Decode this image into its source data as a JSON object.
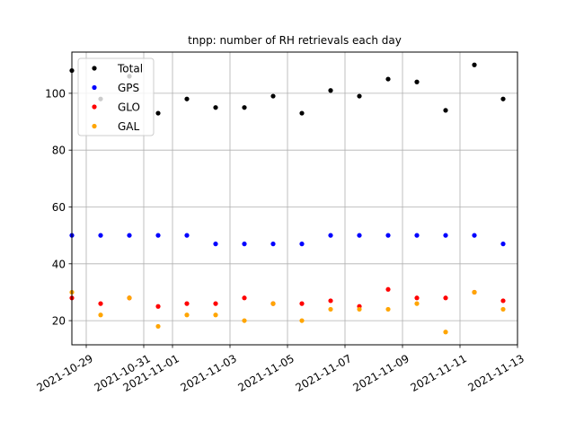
{
  "chart_data": {
    "type": "scatter",
    "title": "tnpp: number of RH retrievals each day",
    "xlabel": "",
    "ylabel": "",
    "x_type": "date",
    "xlim": [
      "2021-10-28T12:00",
      "2021-11-13T00:00"
    ],
    "ylim": [
      11.5,
      114.5
    ],
    "grid": true,
    "legend_position": "top-left",
    "x_ticks": [
      "2021-10-29",
      "2021-10-31",
      "2021-11-01",
      "2021-11-03",
      "2021-11-05",
      "2021-11-07",
      "2021-11-09",
      "2021-11-11",
      "2021-11-13"
    ],
    "y_ticks": [
      20,
      40,
      60,
      80,
      100
    ],
    "x": [
      "2021-10-28T12:00",
      "2021-10-29T12:00",
      "2021-10-30T12:00",
      "2021-10-31T12:00",
      "2021-11-01T12:00",
      "2021-11-02T12:00",
      "2021-11-03T12:00",
      "2021-11-04T12:00",
      "2021-11-05T12:00",
      "2021-11-06T12:00",
      "2021-11-07T12:00",
      "2021-11-08T12:00",
      "2021-11-09T12:00",
      "2021-11-10T12:00",
      "2021-11-11T12:00",
      "2021-11-12T12:00"
    ],
    "series": [
      {
        "name": "Total",
        "color": "#000000",
        "values": [
          108,
          98,
          106,
          93,
          98,
          95,
          95,
          99,
          93,
          101,
          99,
          105,
          104,
          94,
          110,
          98
        ]
      },
      {
        "name": "GPS",
        "color": "#0000ff",
        "values": [
          50,
          50,
          50,
          50,
          50,
          47,
          47,
          47,
          47,
          50,
          50,
          50,
          50,
          50,
          50,
          47
        ]
      },
      {
        "name": "GLO",
        "color": "#ff0000",
        "values": [
          28,
          26,
          28,
          25,
          26,
          26,
          28,
          26,
          26,
          27,
          25,
          31,
          28,
          28,
          30,
          27
        ]
      },
      {
        "name": "GAL",
        "color": "#ffa500",
        "values": [
          30,
          22,
          28,
          18,
          22,
          22,
          20,
          26,
          20,
          24,
          24,
          24,
          26,
          16,
          30,
          24
        ]
      }
    ]
  }
}
